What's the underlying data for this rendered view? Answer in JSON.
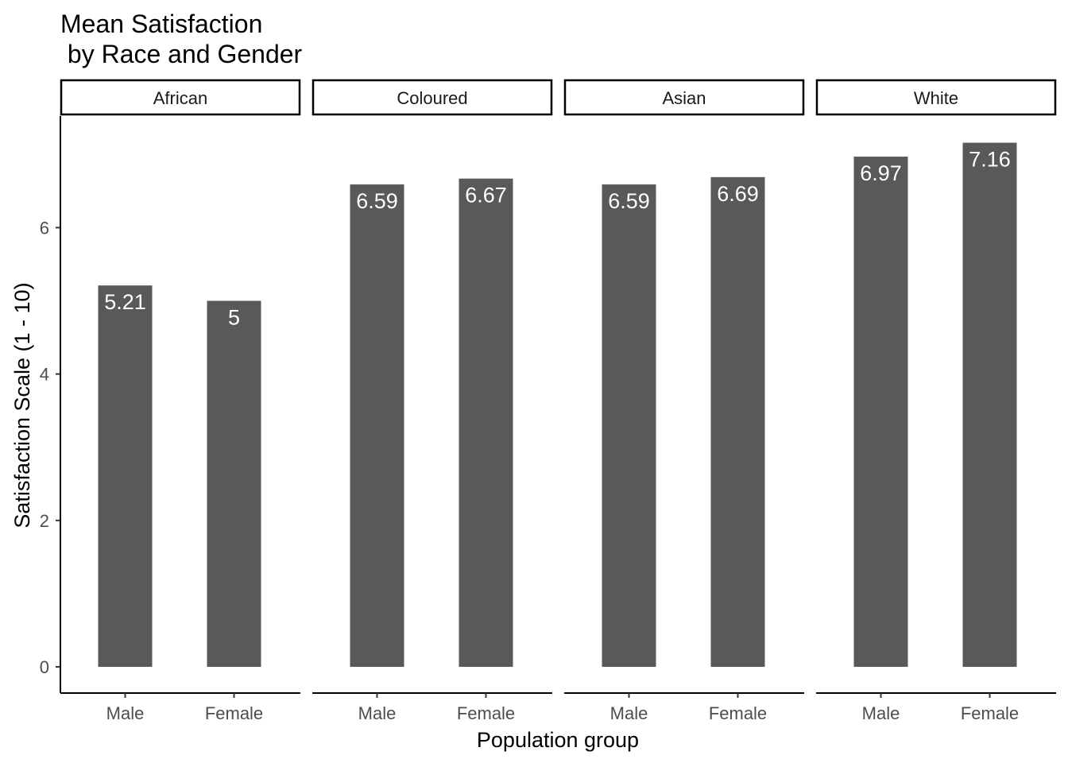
{
  "chart_data": {
    "type": "bar",
    "title_lines": [
      "Mean Satisfaction",
      " by Race and Gender"
    ],
    "xlabel": "Population group",
    "ylabel": "Satisfaction Scale (1 - 10)",
    "ylim": [
      0,
      7.5
    ],
    "yticks": [
      0,
      2,
      4,
      6
    ],
    "categories": [
      "Male",
      "Female"
    ],
    "grid": false,
    "facets": [
      {
        "name": "African",
        "values": [
          5.21,
          5
        ]
      },
      {
        "name": "Coloured",
        "values": [
          6.59,
          6.67
        ]
      },
      {
        "name": "Asian",
        "values": [
          6.59,
          6.69
        ]
      },
      {
        "name": "White",
        "values": [
          6.97,
          7.16
        ]
      }
    ],
    "bar_color": "#595959",
    "label_color": "#ffffff"
  }
}
